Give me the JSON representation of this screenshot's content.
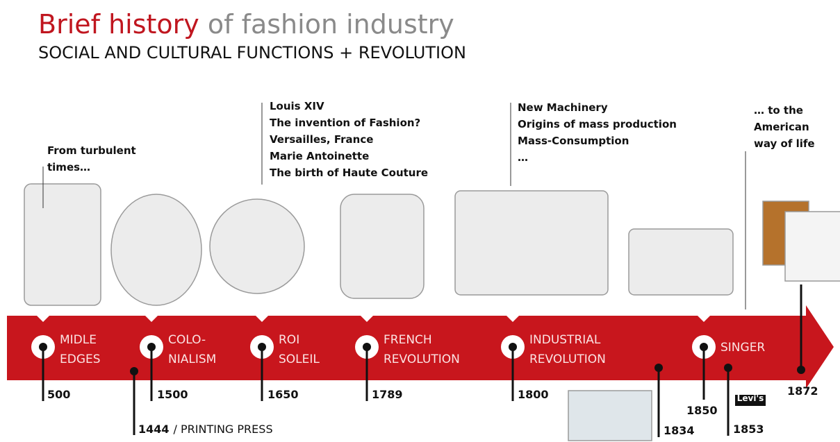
{
  "header": {
    "title_main": "Brief history",
    "title_rest": "of fashion industry",
    "subtitle": "SOCIAL AND CULTURAL FUNCTIONS + REVOLUTION"
  },
  "annotations": [
    {
      "lines": [
        "From turbulent",
        "times…"
      ]
    },
    {
      "lines": [
        "Louis XIV",
        "The invention of Fashion?",
        "Versailles,  France",
        "Marie Antoinette",
        "The birth of Haute Couture"
      ]
    },
    {
      "lines": [
        "New Machinery",
        "Origins of mass production",
        "Mass-Consumption",
        "…"
      ]
    },
    {
      "lines": [
        "… to the",
        "American",
        "way of life"
      ]
    }
  ],
  "eras": [
    {
      "lines": [
        "MIDLE",
        "EDGES"
      ]
    },
    {
      "lines": [
        "COLO-",
        "NIALISM"
      ]
    },
    {
      "lines": [
        "ROI",
        "SOLEIL"
      ]
    },
    {
      "lines": [
        "FRENCH",
        "REVOLUTION"
      ]
    },
    {
      "lines": [
        "INDUSTRIAL",
        "REVOLUTION"
      ]
    },
    {
      "lines": [
        "SINGER"
      ]
    }
  ],
  "years": [
    {
      "year": 500
    },
    {
      "year": 1500
    },
    {
      "year": 1650
    },
    {
      "year": 1789
    },
    {
      "year": 1800
    },
    {
      "year": 1444,
      "note": "/ PRINTING PRESS"
    },
    {
      "year": 1834
    },
    {
      "year": 1850
    },
    {
      "year": 1853
    },
    {
      "year": 1872
    }
  ],
  "brand": "Levi's"
}
